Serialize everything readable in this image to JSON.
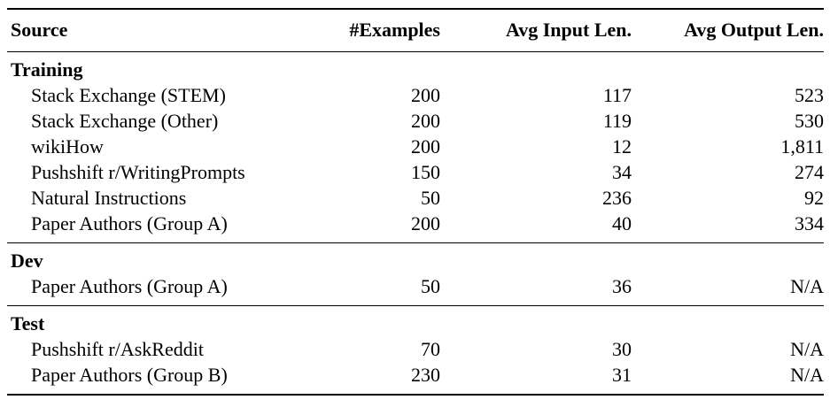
{
  "table": {
    "columns": [
      "Source",
      "#Examples",
      "Avg Input Len.",
      "Avg Output Len."
    ],
    "sections": [
      {
        "label": "Training",
        "rows": [
          {
            "source": "Stack Exchange (STEM)",
            "examples": "200",
            "avg_input_len": "117",
            "avg_output_len": "523"
          },
          {
            "source": "Stack Exchange (Other)",
            "examples": "200",
            "avg_input_len": "119",
            "avg_output_len": "530"
          },
          {
            "source": "wikiHow",
            "examples": "200",
            "avg_input_len": "12",
            "avg_output_len": "1,811"
          },
          {
            "source": "Pushshift r/WritingPrompts",
            "examples": "150",
            "avg_input_len": "34",
            "avg_output_len": "274"
          },
          {
            "source": "Natural Instructions",
            "examples": "50",
            "avg_input_len": "236",
            "avg_output_len": "92"
          },
          {
            "source": "Paper Authors (Group A)",
            "examples": "200",
            "avg_input_len": "40",
            "avg_output_len": "334"
          }
        ]
      },
      {
        "label": "Dev",
        "rows": [
          {
            "source": "Paper Authors (Group A)",
            "examples": "50",
            "avg_input_len": "36",
            "avg_output_len": "N/A"
          }
        ]
      },
      {
        "label": "Test",
        "rows": [
          {
            "source": "Pushshift r/AskReddit",
            "examples": "70",
            "avg_input_len": "30",
            "avg_output_len": "N/A"
          },
          {
            "source": "Paper Authors (Group B)",
            "examples": "230",
            "avg_input_len": "31",
            "avg_output_len": "N/A"
          }
        ]
      }
    ]
  }
}
